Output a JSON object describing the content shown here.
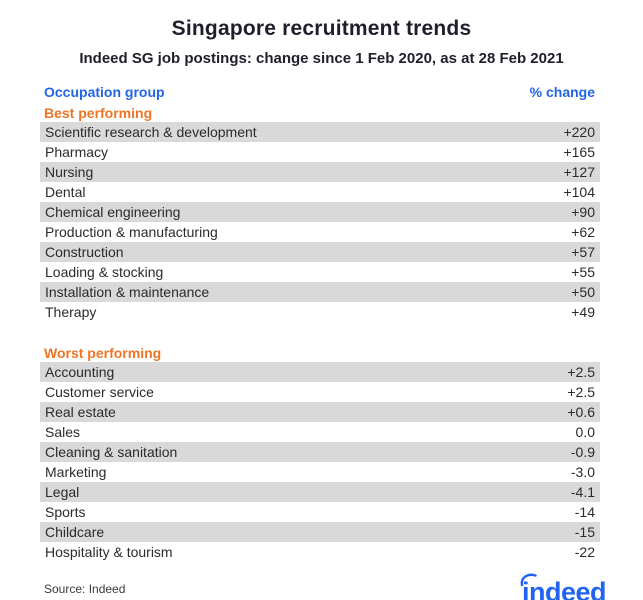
{
  "chart_data": {
    "type": "table",
    "title": "Singapore recruitment trends",
    "subtitle": "Indeed SG job postings: change since 1 Feb 2020, as at 28 Feb 2021",
    "columns": [
      "Occupation group",
      "% change"
    ],
    "sections": [
      {
        "name": "Best performing",
        "rows": [
          [
            "Scientific research & development",
            "+220"
          ],
          [
            "Pharmacy",
            "+165"
          ],
          [
            "Nursing",
            "+127"
          ],
          [
            "Dental",
            "+104"
          ],
          [
            "Chemical engineering",
            "+90"
          ],
          [
            "Production & manufacturing",
            "+62"
          ],
          [
            "Construction",
            "+57"
          ],
          [
            "Loading & stocking",
            "+55"
          ],
          [
            "Installation & maintenance",
            "+50"
          ],
          [
            "Therapy",
            "+49"
          ]
        ]
      },
      {
        "name": "Worst performing",
        "rows": [
          [
            "Accounting",
            "+2.5"
          ],
          [
            "Customer service",
            "+2.5"
          ],
          [
            "Real estate",
            "+0.6"
          ],
          [
            "Sales",
            "0.0"
          ],
          [
            "Cleaning & sanitation",
            "-0.9"
          ],
          [
            "Marketing",
            "-3.0"
          ],
          [
            "Legal",
            "-4.1"
          ],
          [
            "Sports",
            "-14"
          ],
          [
            "Childcare",
            "-15"
          ],
          [
            "Hospitality & tourism",
            "-22"
          ]
        ]
      }
    ],
    "source": "Source: Indeed",
    "layout": {
      "stripe_pattern": "alternating, first row shaded",
      "value_alignment": "right",
      "grid": false
    }
  },
  "footer": {
    "logo_text": "indeed"
  },
  "colors": {
    "header_blue": "#2264e8",
    "section_orange": "#ef7423",
    "stripe_gray": "#d9d9d9",
    "logo_blue": "#2164f3",
    "title_text": "#1f1f2b",
    "row_text": "#2b2b2b",
    "background": "#ffffff"
  }
}
